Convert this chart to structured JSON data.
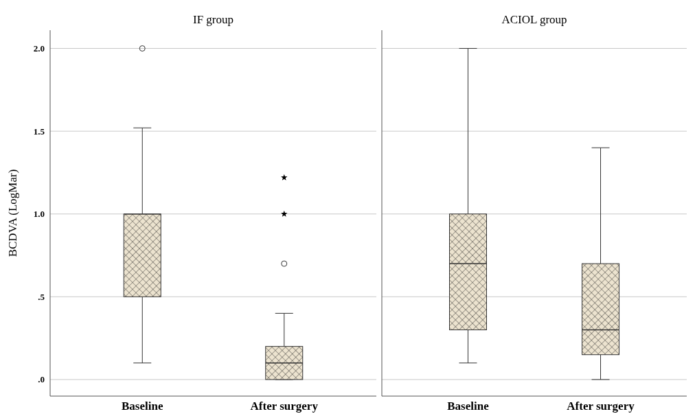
{
  "chart_data": [
    {
      "type": "box",
      "title": "IF group",
      "ylabel": "BCDVA (LogMar)",
      "categories": [
        "Baseline",
        "After surgery"
      ],
      "color": "#ece3cf",
      "boxes": [
        {
          "low": 0.1,
          "q1": 0.5,
          "median": 1.0,
          "q3": 1.0,
          "high": 1.52,
          "outliers": [
            2.0
          ]
        },
        {
          "low": 0,
          "q1": 0,
          "median": 0.1,
          "q3": 0.2,
          "high": 0.4,
          "outliers": [
            0.7
          ]
        }
      ],
      "series": [
        {
          "type": "scatter",
          "x": [
            "After surgery",
            "After surgery"
          ],
          "values": [
            1.22,
            1.0
          ],
          "color": "#000000",
          "marker": "star"
        }
      ],
      "ylim": [
        -0.1,
        2.11
      ],
      "yticks": [
        {
          "value": 0,
          "label": ".0"
        },
        {
          "value": 0.5,
          "label": ".5"
        },
        {
          "value": 1,
          "label": "1.0"
        },
        {
          "value": 1.5,
          "label": "1.5"
        },
        {
          "value": 2,
          "label": "2.0"
        }
      ],
      "grid": "y"
    },
    {
      "type": "box",
      "title": "ACIOL group",
      "categories": [
        "Baseline",
        "After surgery"
      ],
      "color": "#ece3cf",
      "boxes": [
        {
          "low": 0.1,
          "q1": 0.3,
          "median": 0.7,
          "q3": 1.0,
          "high": 2.0
        },
        {
          "low": 0,
          "q1": 0.15,
          "median": 0.3,
          "q3": 0.7,
          "high": 1.4
        }
      ],
      "ylim": [
        -0.1,
        2.11
      ],
      "yticks": [
        {
          "value": 0,
          "label": null
        },
        {
          "value": 0.5,
          "label": null
        },
        {
          "value": 1,
          "label": null
        },
        {
          "value": 1.5,
          "label": null
        },
        {
          "value": 2,
          "label": null
        }
      ],
      "grid": "y",
      "tick_labels": "x"
    }
  ]
}
